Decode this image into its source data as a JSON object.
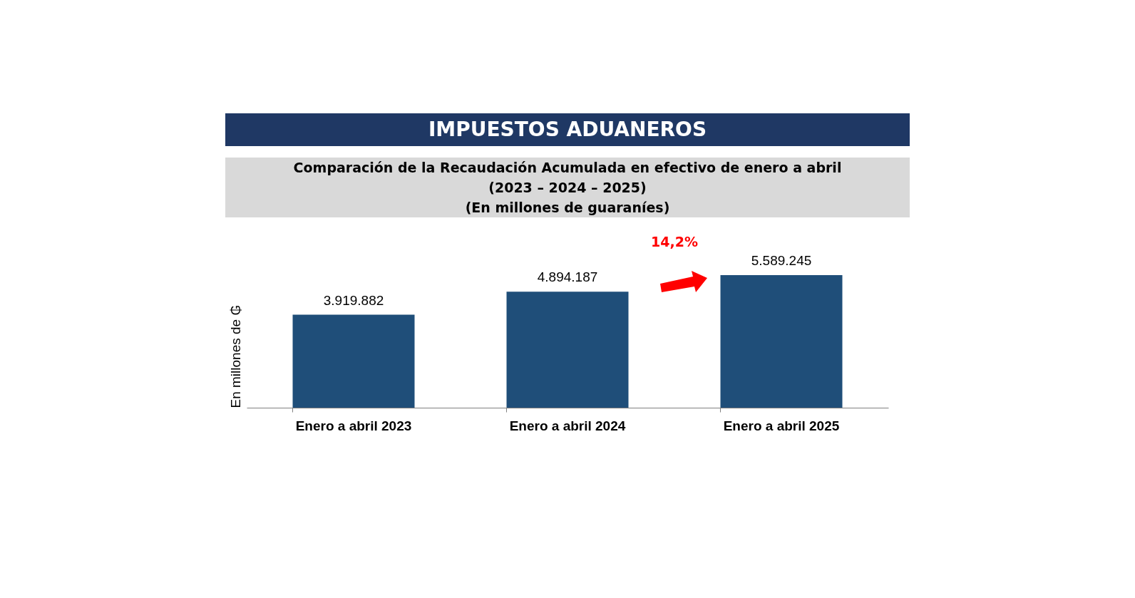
{
  "chart_data": {
    "type": "bar",
    "title": "IMPUESTOS ADUANEROS",
    "subtitle": "Comparación de la Recaudación Acumulada en efectivo de enero a abril\n(2023 – 2024 – 2025)\n(En millones de guaraníes)",
    "ylabel": "En millones de ₲",
    "categories": [
      "Enero a abril 2023",
      "Enero a abril 2024",
      "Enero a abril 2025"
    ],
    "values": [
      3919882,
      4894187,
      5589245
    ],
    "color": "#1f4e79",
    "value_labels": [
      "3.919.882",
      "4.894.187",
      "5.589.245"
    ],
    "annotations": [
      "14,2%"
    ]
  }
}
